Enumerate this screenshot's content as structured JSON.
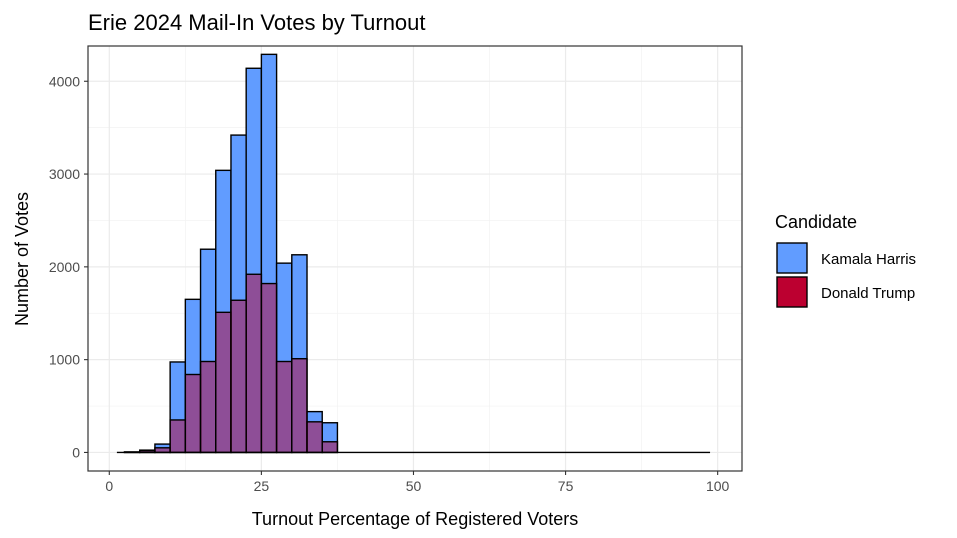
{
  "chart_data": {
    "type": "bar",
    "title": "Erie 2024 Mail-In Votes by Turnout",
    "xlabel": "Turnout Percentage of Registered Voters",
    "ylabel": "Number of Votes",
    "xlim": [
      -3.5,
      104
    ],
    "ylim": [
      -200,
      4380
    ],
    "xticks": [
      0,
      25,
      50,
      75,
      100
    ],
    "yticks": [
      0,
      1000,
      2000,
      3000,
      4000
    ],
    "grid": true,
    "legend_position": "right",
    "legend_title": "Candidate",
    "bin_width": 2.5,
    "bin_start": 1.25,
    "bin_end": 98.75,
    "series": [
      {
        "name": "Kamala Harris",
        "color": "#619CFF",
        "values": [
          {
            "x": 3.75,
            "y": 5
          },
          {
            "x": 6.25,
            "y": 25
          },
          {
            "x": 8.75,
            "y": 90
          },
          {
            "x": 11.25,
            "y": 975
          },
          {
            "x": 13.75,
            "y": 1650
          },
          {
            "x": 16.25,
            "y": 2190
          },
          {
            "x": 18.75,
            "y": 3040
          },
          {
            "x": 21.25,
            "y": 3420
          },
          {
            "x": 23.75,
            "y": 4140
          },
          {
            "x": 26.25,
            "y": 4290
          },
          {
            "x": 28.75,
            "y": 2040
          },
          {
            "x": 31.25,
            "y": 2130
          },
          {
            "x": 33.75,
            "y": 440
          },
          {
            "x": 36.25,
            "y": 320
          }
        ]
      },
      {
        "name": "Donald Trump",
        "color": "#BC0030",
        "values": [
          {
            "x": 3.75,
            "y": 5
          },
          {
            "x": 6.25,
            "y": 20
          },
          {
            "x": 8.75,
            "y": 50
          },
          {
            "x": 11.25,
            "y": 350
          },
          {
            "x": 13.75,
            "y": 840
          },
          {
            "x": 16.25,
            "y": 980
          },
          {
            "x": 18.75,
            "y": 1510
          },
          {
            "x": 21.25,
            "y": 1640
          },
          {
            "x": 23.75,
            "y": 1920
          },
          {
            "x": 26.25,
            "y": 1820
          },
          {
            "x": 28.75,
            "y": 980
          },
          {
            "x": 31.25,
            "y": 1010
          },
          {
            "x": 33.75,
            "y": 330
          },
          {
            "x": 36.25,
            "y": 115
          }
        ]
      }
    ]
  }
}
